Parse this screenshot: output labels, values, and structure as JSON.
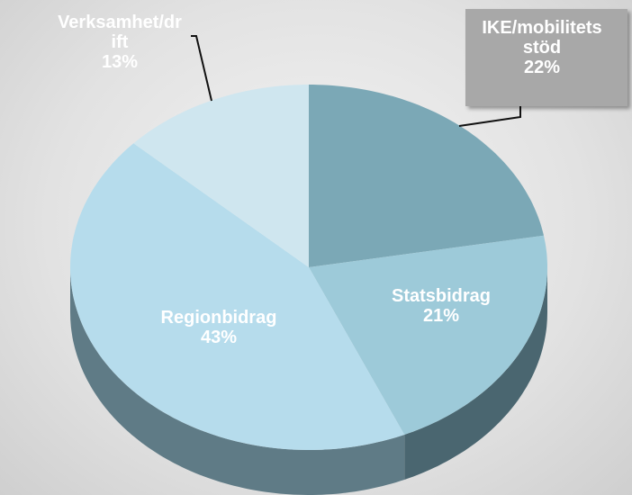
{
  "chart_data": {
    "type": "pie3d",
    "categories": [
      "IKE/mobilitetsstöd",
      "Statsbidrag",
      "Regionbidrag",
      "Verksamhet/drift"
    ],
    "values": [
      22,
      21,
      43,
      13
    ],
    "value_labels": [
      "22%",
      "21%",
      "43%",
      "13%"
    ],
    "colors": [
      "#7ba8b6",
      "#9dcad9",
      "#b6dcec",
      "#cfe6ef"
    ],
    "side_colors": [
      "#50707b",
      "#4a6670",
      "#5f7b86",
      "#6f8c96"
    ]
  }
}
